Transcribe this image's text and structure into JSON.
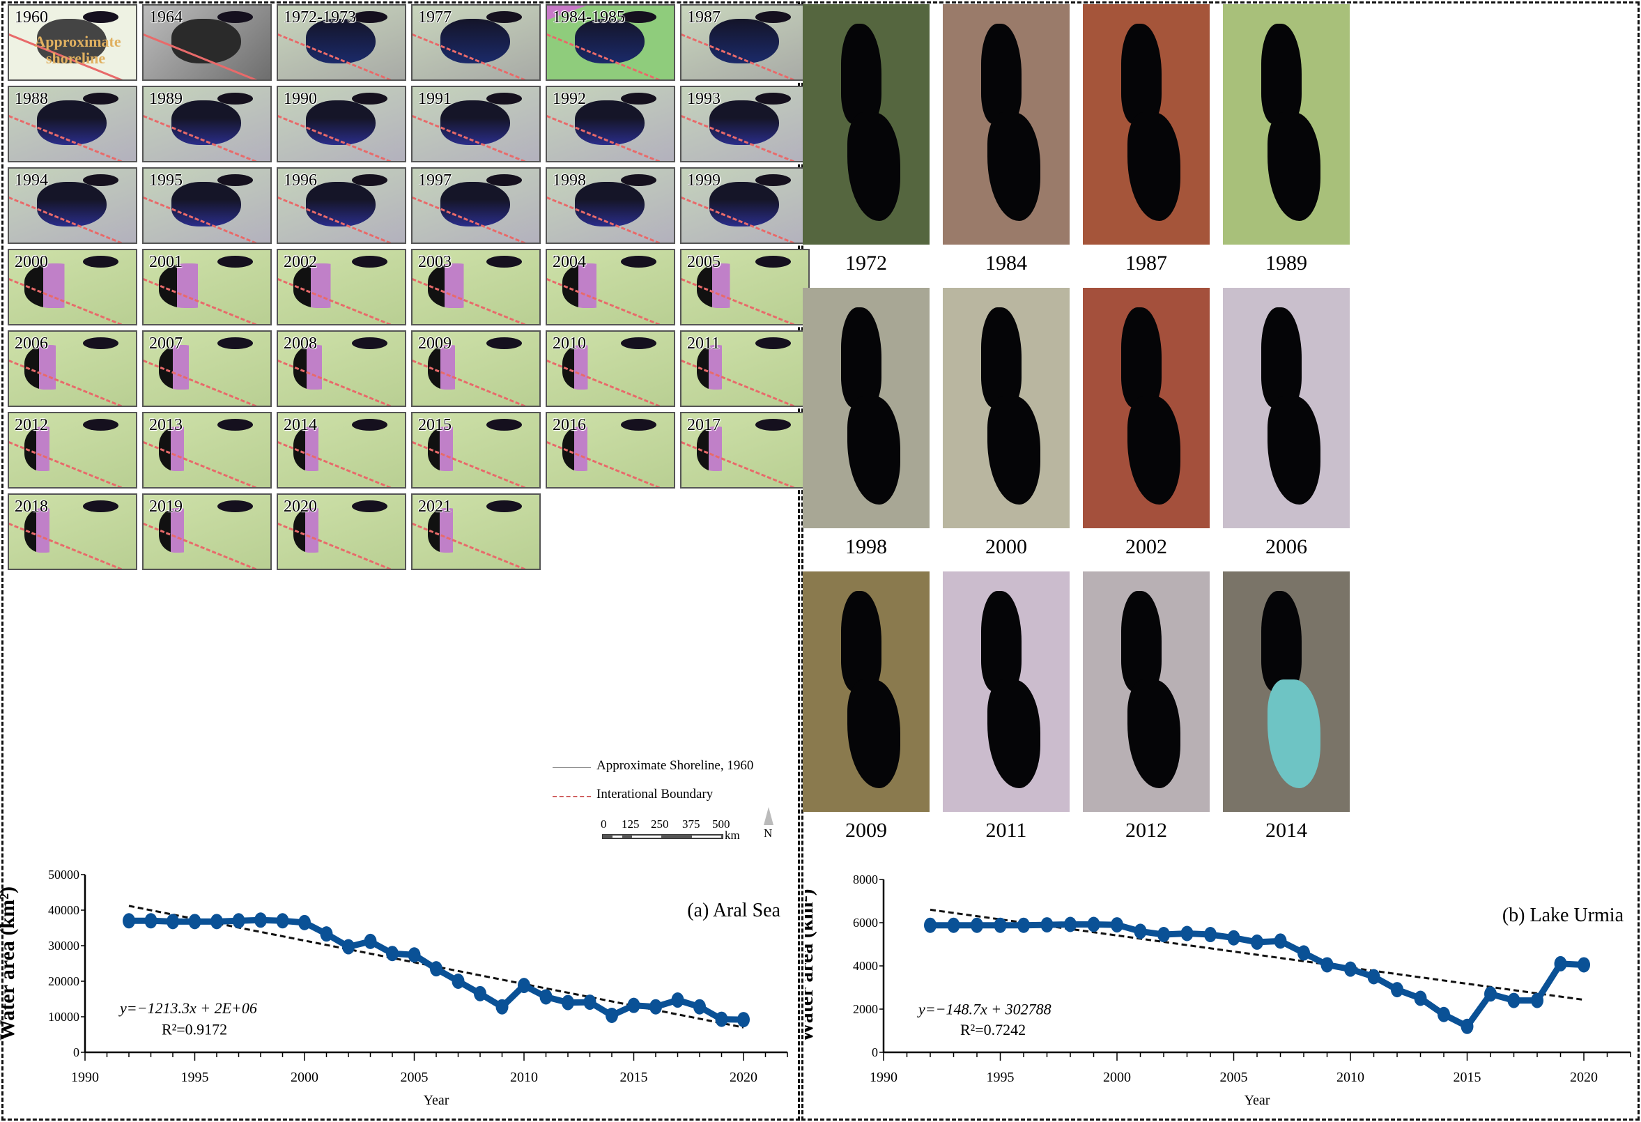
{
  "panel_a": {
    "tiles": [
      "1960",
      "1964",
      "1972-1973",
      "1977",
      "1984-1985",
      "1987",
      "1988",
      "1989",
      "1990",
      "1991",
      "1992",
      "1993",
      "1994",
      "1995",
      "1996",
      "1997",
      "1998",
      "1999",
      "2000",
      "2001",
      "2002",
      "2003",
      "2004",
      "2005",
      "2006",
      "2007",
      "2008",
      "2009",
      "2010",
      "2011",
      "2012",
      "2013",
      "2014",
      "2015",
      "2016",
      "2017",
      "2018",
      "2019",
      "2020",
      "2021"
    ],
    "shoreline_text_1": "Approximate",
    "shoreline_text_2": "shoreline",
    "legend": {
      "shoreline": "Approximate Shoreline, 1960",
      "boundary": "Interational Boundary",
      "scale_ticks": [
        "0",
        "125",
        "250",
        "375",
        "500"
      ],
      "scale_unit": "km",
      "north": "N"
    }
  },
  "panel_b": {
    "tiles": [
      "1972",
      "1984",
      "1987",
      "1989",
      "1998",
      "2000",
      "2002",
      "2006",
      "2009",
      "2011",
      "2012",
      "2014"
    ]
  },
  "colors": {
    "series": "#0a5196",
    "trend": "#111111",
    "boundary": "#e86a6a"
  },
  "chart_data": [
    {
      "type": "line",
      "title": "(a) Aral Sea",
      "xlabel": "Year",
      "ylabel": "Water area (km²)",
      "xlim": [
        1990,
        2022
      ],
      "ylim": [
        0,
        50000
      ],
      "xticks": [
        1990,
        1995,
        2000,
        2005,
        2010,
        2015,
        2020
      ],
      "yticks": [
        0,
        10000,
        20000,
        30000,
        40000,
        50000
      ],
      "x": [
        1992,
        1993,
        1994,
        1995,
        1996,
        1997,
        1998,
        1999,
        2000,
        2001,
        2002,
        2003,
        2004,
        2005,
        2006,
        2007,
        2008,
        2009,
        2010,
        2011,
        2012,
        2013,
        2014,
        2015,
        2016,
        2017,
        2018,
        2019,
        2020
      ],
      "series": [
        {
          "name": "Water area",
          "values": [
            37000,
            37000,
            36800,
            36800,
            36800,
            37000,
            37200,
            37000,
            36500,
            33300,
            29700,
            31200,
            27800,
            27400,
            23500,
            20000,
            16500,
            12800,
            18800,
            15600,
            14000,
            14100,
            10400,
            13200,
            12800,
            14700,
            12800,
            9300,
            9200
          ]
        }
      ],
      "trendline": {
        "slope": -1213.3,
        "y_start": 41200,
        "y_end": 7000,
        "x_start": 1992,
        "x_end": 2020
      },
      "equation": "y=−1213.3x + 2E+06",
      "r2_label": "R²=0.9172",
      "grid": false
    },
    {
      "type": "line",
      "title": "(b) Lake Urmia",
      "xlabel": "Year",
      "ylabel": "Water area (km²)",
      "xlim": [
        1990,
        2022
      ],
      "ylim": [
        0,
        8000
      ],
      "xticks": [
        1990,
        1995,
        2000,
        2005,
        2010,
        2015,
        2020
      ],
      "yticks": [
        0,
        2000,
        4000,
        6000,
        8000
      ],
      "x": [
        1992,
        1993,
        1994,
        1995,
        1996,
        1997,
        1998,
        1999,
        2000,
        2001,
        2002,
        2003,
        2004,
        2005,
        2006,
        2007,
        2008,
        2009,
        2010,
        2011,
        2012,
        2013,
        2014,
        2015,
        2016,
        2017,
        2018,
        2019,
        2020
      ],
      "series": [
        {
          "name": "Water area",
          "values": [
            5880,
            5880,
            5880,
            5880,
            5880,
            5900,
            5920,
            5920,
            5900,
            5600,
            5450,
            5500,
            5450,
            5300,
            5100,
            5150,
            4600,
            4050,
            3850,
            3500,
            2900,
            2500,
            1750,
            1200,
            2700,
            2400,
            2400,
            4100,
            4050
          ]
        }
      ],
      "trendline": {
        "slope": -148.7,
        "y_start": 6600,
        "y_end": 2430,
        "x_start": 1992,
        "x_end": 2020
      },
      "equation": "y=−148.7x + 302788",
      "r2_label": "R²=0.7242",
      "grid": false
    }
  ]
}
